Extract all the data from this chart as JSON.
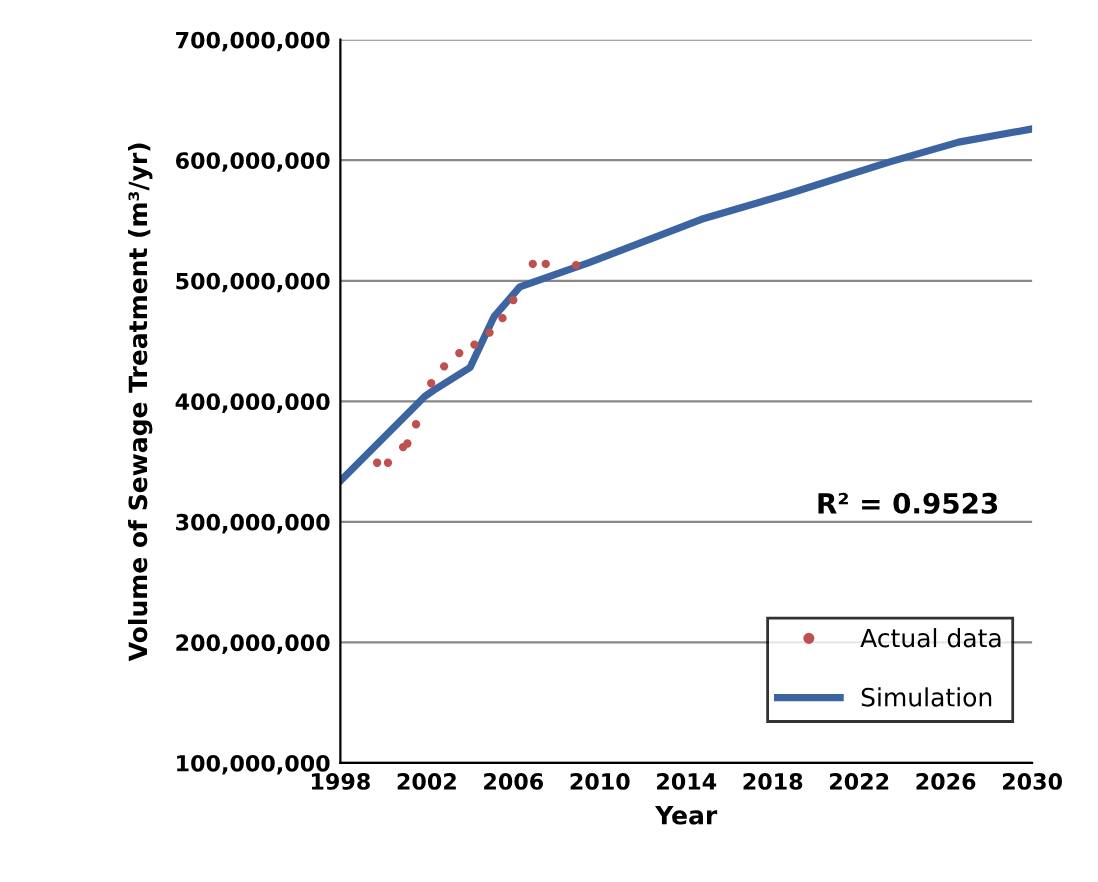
{
  "chart_data": {
    "type": "line",
    "xlabel": "Year",
    "ylabel": "Volume of Sewage Treatment (m³/yr)",
    "annotations": [
      "R² = 0.9523"
    ],
    "series": [
      {
        "name": "Actual data",
        "type": "scatter",
        "color": "#c0504d",
        "marker": "circle",
        "x": [
          1999.7,
          2000.2,
          2000.9,
          2001.1,
          2001.5,
          2002.2,
          2002.8,
          2003.5,
          2004.2,
          2004.9,
          2005.5,
          2006.0,
          2006.9,
          2007.5,
          2008.9
        ],
        "values": [
          349000000,
          349000000,
          362000000,
          365000000,
          381000000,
          415000000,
          429000000,
          440000000,
          447000000,
          457000000,
          469000000,
          484000000,
          514000000,
          514000000,
          513000000
        ]
      },
      {
        "name": "Simulation",
        "color": "#3b64a0",
        "line_style": "solid",
        "x": [
          1998,
          2001.9,
          2002.3,
          2004.0,
          2005.1,
          2006.3,
          2009.5,
          2014.7,
          2018.7,
          2023.3,
          2026.6,
          2030
        ],
        "values": [
          334000000,
          404000000,
          409000000,
          428000000,
          470000000,
          495000000,
          515000000,
          551000000,
          572000000,
          598000000,
          615000000,
          626000000
        ]
      }
    ],
    "xlim": [
      1998,
      2030
    ],
    "xticks": [
      1998,
      2002,
      2006,
      2010,
      2014,
      2018,
      2022,
      2026,
      2030
    ],
    "ylim": [
      100000000,
      700000000
    ],
    "yticks": [
      {
        "value": 100000000,
        "label": "100,000,000"
      },
      {
        "value": 200000000,
        "label": "200,000,000"
      },
      {
        "value": 300000000,
        "label": "300,000,000"
      },
      {
        "value": 400000000,
        "label": "400,000,000"
      },
      {
        "value": 500000000,
        "label": "500,000,000"
      },
      {
        "value": 600000000,
        "label": "600,000,000"
      },
      {
        "value": 700000000,
        "label": "700,000,000"
      }
    ],
    "grid": "y",
    "legend": "bottom right"
  }
}
